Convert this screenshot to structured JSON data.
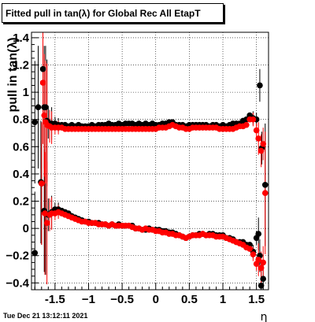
{
  "chart_data": {
    "type": "scatter",
    "title": "Fitted pull in tan(λ) for Global Rec All EtapT",
    "xlabel": "η",
    "ylabel": "pull in tan(λ)",
    "xlim": [
      -1.85,
      1.68
    ],
    "ylim": [
      -0.45,
      1.44
    ],
    "xticks": [
      -1.5,
      -1,
      -0.5,
      0,
      0.5,
      1,
      1.5
    ],
    "xtick_labels": [
      "-1.5",
      "−1",
      "−0.5",
      "0",
      "0.5",
      "1",
      "1.5"
    ],
    "yticks": [
      -0.4,
      -0.2,
      0,
      0.2,
      0.4,
      0.6,
      0.8,
      1,
      1.2,
      1.4
    ],
    "ytick_labels": [
      "−0.4",
      "−0.2",
      "0",
      "0.2",
      "0.4",
      "0.6",
      "0.8",
      "1",
      "1.2",
      "1.4"
    ],
    "grid": true,
    "series": [
      {
        "color": "#000000",
        "points": [
          [
            -1.8,
            0.78
          ],
          [
            -1.75,
            0.89
          ],
          [
            -1.71,
            0.34
          ],
          [
            -1.68,
            1.17
          ],
          [
            -1.66,
            0.89
          ],
          [
            -1.64,
            0.89
          ],
          [
            -1.62,
            0.79
          ],
          [
            -1.6,
            0.78
          ],
          [
            -1.55,
            0.77
          ],
          [
            -1.5,
            0.77
          ],
          [
            -1.45,
            0.76
          ],
          [
            -1.4,
            0.76
          ],
          [
            -1.35,
            0.76
          ],
          [
            -1.3,
            0.75
          ],
          [
            -1.25,
            0.76
          ],
          [
            -1.2,
            0.75
          ],
          [
            -1.15,
            0.76
          ],
          [
            -1.1,
            0.75
          ],
          [
            -1.05,
            0.75
          ],
          [
            -1.0,
            0.75
          ],
          [
            -0.95,
            0.76
          ],
          [
            -0.9,
            0.75
          ],
          [
            -0.85,
            0.76
          ],
          [
            -0.8,
            0.76
          ],
          [
            -0.75,
            0.76
          ],
          [
            -0.7,
            0.77
          ],
          [
            -0.65,
            0.76
          ],
          [
            -0.6,
            0.76
          ],
          [
            -0.55,
            0.77
          ],
          [
            -0.5,
            0.76
          ],
          [
            -0.45,
            0.77
          ],
          [
            -0.4,
            0.77
          ],
          [
            -0.35,
            0.77
          ],
          [
            -0.3,
            0.76
          ],
          [
            -0.25,
            0.77
          ],
          [
            -0.2,
            0.76
          ],
          [
            -0.15,
            0.77
          ],
          [
            -0.1,
            0.76
          ],
          [
            -0.05,
            0.77
          ],
          [
            0.0,
            0.76
          ],
          [
            0.05,
            0.76
          ],
          [
            0.1,
            0.77
          ],
          [
            0.15,
            0.77
          ],
          [
            0.2,
            0.78
          ],
          [
            0.25,
            0.78
          ],
          [
            0.3,
            0.76
          ],
          [
            0.35,
            0.76
          ],
          [
            0.4,
            0.76
          ],
          [
            0.45,
            0.75
          ],
          [
            0.5,
            0.76
          ],
          [
            0.55,
            0.76
          ],
          [
            0.6,
            0.76
          ],
          [
            0.65,
            0.76
          ],
          [
            0.7,
            0.76
          ],
          [
            0.75,
            0.76
          ],
          [
            0.8,
            0.75
          ],
          [
            0.85,
            0.76
          ],
          [
            0.9,
            0.76
          ],
          [
            0.95,
            0.75
          ],
          [
            1.0,
            0.76
          ],
          [
            1.05,
            0.75
          ],
          [
            1.1,
            0.76
          ],
          [
            1.15,
            0.77
          ],
          [
            1.2,
            0.77
          ],
          [
            1.25,
            0.77
          ],
          [
            1.3,
            0.79
          ],
          [
            1.35,
            0.8
          ],
          [
            1.4,
            0.83
          ],
          [
            1.45,
            0.81
          ],
          [
            1.5,
            0.8
          ],
          [
            1.55,
            1.05
          ],
          [
            1.58,
            0.59
          ],
          [
            -1.8,
            -0.18
          ],
          [
            -1.7,
            0.33
          ],
          [
            -1.66,
            0.13
          ],
          [
            -1.64,
            0.11
          ],
          [
            -1.6,
            0.1
          ],
          [
            -1.55,
            0.12
          ],
          [
            -1.5,
            0.14
          ],
          [
            -1.45,
            0.14
          ],
          [
            -1.4,
            0.13
          ],
          [
            -1.35,
            0.12
          ],
          [
            -1.3,
            0.11
          ],
          [
            -1.25,
            0.09
          ],
          [
            -1.2,
            0.08
          ],
          [
            -1.15,
            0.07
          ],
          [
            -1.1,
            0.06
          ],
          [
            -1.05,
            0.05
          ],
          [
            -1.0,
            0.05
          ],
          [
            -0.95,
            0.04
          ],
          [
            -0.9,
            0.04
          ],
          [
            -0.85,
            0.04
          ],
          [
            -0.8,
            0.03
          ],
          [
            -0.75,
            0.03
          ],
          [
            -0.7,
            0.02
          ],
          [
            -0.65,
            0.03
          ],
          [
            -0.6,
            0.02
          ],
          [
            -0.55,
            0.03
          ],
          [
            -0.5,
            0.02
          ],
          [
            -0.45,
            0.02
          ],
          [
            -0.4,
            0.02
          ],
          [
            -0.35,
            0.02
          ],
          [
            -0.3,
            0.0
          ],
          [
            -0.25,
            0.0
          ],
          [
            -0.2,
            -0.01
          ],
          [
            -0.15,
            -0.01
          ],
          [
            -0.1,
            0.0
          ],
          [
            -0.05,
            -0.01
          ],
          [
            0.0,
            -0.01
          ],
          [
            0.05,
            -0.01
          ],
          [
            0.1,
            -0.02
          ],
          [
            0.15,
            -0.02
          ],
          [
            0.2,
            -0.03
          ],
          [
            0.25,
            -0.03
          ],
          [
            0.3,
            -0.04
          ],
          [
            0.35,
            -0.05
          ],
          [
            0.4,
            -0.06
          ],
          [
            0.45,
            -0.07
          ],
          [
            0.5,
            -0.06
          ],
          [
            0.55,
            -0.05
          ],
          [
            0.6,
            -0.05
          ],
          [
            0.65,
            -0.04
          ],
          [
            0.7,
            -0.04
          ],
          [
            0.75,
            -0.05
          ],
          [
            0.8,
            -0.04
          ],
          [
            0.85,
            -0.04
          ],
          [
            0.9,
            -0.05
          ],
          [
            0.95,
            -0.05
          ],
          [
            1.0,
            -0.05
          ],
          [
            1.05,
            -0.07
          ],
          [
            1.1,
            -0.07
          ],
          [
            1.15,
            -0.08
          ],
          [
            1.2,
            -0.1
          ],
          [
            1.25,
            -0.1
          ],
          [
            1.3,
            -0.1
          ],
          [
            1.35,
            -0.12
          ],
          [
            1.4,
            -0.12
          ],
          [
            1.45,
            -0.17
          ],
          [
            1.5,
            -0.07
          ],
          [
            1.53,
            -0.04
          ],
          [
            1.55,
            -0.2
          ],
          [
            1.57,
            -0.42
          ],
          [
            1.6,
            -0.37
          ],
          [
            1.63,
            0.32
          ]
        ]
      },
      {
        "color": "#ff0000",
        "points": [
          [
            -1.68,
            1.07
          ],
          [
            -1.66,
            0.83
          ],
          [
            -1.64,
            0.78
          ],
          [
            -1.62,
            0.76
          ],
          [
            -1.58,
            0.75
          ],
          [
            -1.55,
            0.74
          ],
          [
            -1.5,
            0.74
          ],
          [
            -1.45,
            0.74
          ],
          [
            -1.4,
            0.74
          ],
          [
            -1.35,
            0.73
          ],
          [
            -1.3,
            0.73
          ],
          [
            -1.25,
            0.73
          ],
          [
            -1.2,
            0.73
          ],
          [
            -1.15,
            0.73
          ],
          [
            -1.1,
            0.73
          ],
          [
            -1.05,
            0.73
          ],
          [
            -1.0,
            0.73
          ],
          [
            -0.95,
            0.73
          ],
          [
            -0.9,
            0.73
          ],
          [
            -0.85,
            0.73
          ],
          [
            -0.8,
            0.73
          ],
          [
            -0.75,
            0.73
          ],
          [
            -0.7,
            0.73
          ],
          [
            -0.65,
            0.73
          ],
          [
            -0.6,
            0.73
          ],
          [
            -0.55,
            0.73
          ],
          [
            -0.5,
            0.73
          ],
          [
            -0.45,
            0.73
          ],
          [
            -0.4,
            0.73
          ],
          [
            -0.35,
            0.73
          ],
          [
            -0.3,
            0.73
          ],
          [
            -0.25,
            0.73
          ],
          [
            -0.2,
            0.73
          ],
          [
            -0.15,
            0.73
          ],
          [
            -0.1,
            0.73
          ],
          [
            -0.05,
            0.73
          ],
          [
            0.0,
            0.73
          ],
          [
            0.05,
            0.74
          ],
          [
            0.1,
            0.74
          ],
          [
            0.15,
            0.74
          ],
          [
            0.2,
            0.75
          ],
          [
            0.25,
            0.76
          ],
          [
            0.3,
            0.75
          ],
          [
            0.35,
            0.74
          ],
          [
            0.4,
            0.74
          ],
          [
            0.45,
            0.73
          ],
          [
            0.5,
            0.73
          ],
          [
            0.55,
            0.74
          ],
          [
            0.6,
            0.74
          ],
          [
            0.65,
            0.74
          ],
          [
            0.7,
            0.74
          ],
          [
            0.75,
            0.74
          ],
          [
            0.8,
            0.74
          ],
          [
            0.85,
            0.74
          ],
          [
            0.9,
            0.74
          ],
          [
            0.95,
            0.73
          ],
          [
            1.0,
            0.73
          ],
          [
            1.05,
            0.73
          ],
          [
            1.1,
            0.73
          ],
          [
            1.15,
            0.73
          ],
          [
            1.2,
            0.74
          ],
          [
            1.25,
            0.75
          ],
          [
            1.3,
            0.75
          ],
          [
            1.35,
            0.76
          ],
          [
            1.4,
            0.8
          ],
          [
            1.45,
            0.8
          ],
          [
            1.5,
            0.72
          ],
          [
            1.53,
            0.66
          ],
          [
            1.57,
            0.57
          ],
          [
            1.6,
            0.62
          ],
          [
            1.63,
            0.26
          ],
          [
            -1.7,
            0.33
          ],
          [
            -1.65,
            0.11
          ],
          [
            -1.62,
            0.04
          ],
          [
            -1.58,
            0.1
          ],
          [
            -1.55,
            0.11
          ],
          [
            -1.5,
            0.11
          ],
          [
            -1.45,
            0.12
          ],
          [
            -1.4,
            0.11
          ],
          [
            -1.35,
            0.1
          ],
          [
            -1.3,
            0.09
          ],
          [
            -1.25,
            0.08
          ],
          [
            -1.2,
            0.07
          ],
          [
            -1.15,
            0.06
          ],
          [
            -1.1,
            0.05
          ],
          [
            -1.05,
            0.05
          ],
          [
            -1.0,
            0.04
          ],
          [
            -0.95,
            0.04
          ],
          [
            -0.9,
            0.04
          ],
          [
            -0.85,
            0.03
          ],
          [
            -0.8,
            0.03
          ],
          [
            -0.75,
            0.03
          ],
          [
            -0.7,
            0.02
          ],
          [
            -0.65,
            0.03
          ],
          [
            -0.6,
            0.02
          ],
          [
            -0.55,
            0.02
          ],
          [
            -0.5,
            0.02
          ],
          [
            -0.45,
            0.02
          ],
          [
            -0.4,
            0.02
          ],
          [
            -0.35,
            0.01
          ],
          [
            -0.3,
            0.0
          ],
          [
            -0.25,
            0.0
          ],
          [
            -0.2,
            -0.01
          ],
          [
            -0.15,
            0.0
          ],
          [
            -0.1,
            -0.01
          ],
          [
            -0.05,
            -0.01
          ],
          [
            0.0,
            -0.02
          ],
          [
            0.05,
            -0.02
          ],
          [
            0.1,
            -0.03
          ],
          [
            0.15,
            -0.03
          ],
          [
            0.2,
            -0.04
          ],
          [
            0.25,
            -0.04
          ],
          [
            0.3,
            -0.05
          ],
          [
            0.35,
            -0.05
          ],
          [
            0.4,
            -0.06
          ],
          [
            0.45,
            -0.07
          ],
          [
            0.5,
            -0.06
          ],
          [
            0.55,
            -0.05
          ],
          [
            0.6,
            -0.05
          ],
          [
            0.65,
            -0.05
          ],
          [
            0.7,
            -0.04
          ],
          [
            0.75,
            -0.05
          ],
          [
            0.8,
            -0.05
          ],
          [
            0.85,
            -0.05
          ],
          [
            0.9,
            -0.06
          ],
          [
            0.95,
            -0.06
          ],
          [
            1.0,
            -0.06
          ],
          [
            1.05,
            -0.07
          ],
          [
            1.1,
            -0.08
          ],
          [
            1.15,
            -0.09
          ],
          [
            1.2,
            -0.1
          ],
          [
            1.25,
            -0.11
          ],
          [
            1.3,
            -0.12
          ],
          [
            1.35,
            -0.14
          ],
          [
            1.4,
            -0.15
          ],
          [
            1.45,
            -0.19
          ],
          [
            1.5,
            -0.26
          ],
          [
            1.53,
            -0.23
          ],
          [
            1.57,
            -0.29
          ],
          [
            1.6,
            -0.25
          ]
        ]
      }
    ]
  },
  "footer": {
    "timestamp": "Tue Dec 21 13:12:11 2021"
  }
}
